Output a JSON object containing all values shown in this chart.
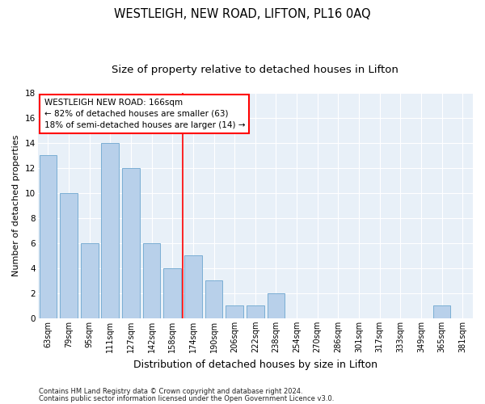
{
  "title": "WESTLEIGH, NEW ROAD, LIFTON, PL16 0AQ",
  "subtitle": "Size of property relative to detached houses in Lifton",
  "xlabel": "Distribution of detached houses by size in Lifton",
  "ylabel": "Number of detached properties",
  "categories": [
    "63sqm",
    "79sqm",
    "95sqm",
    "111sqm",
    "127sqm",
    "142sqm",
    "158sqm",
    "174sqm",
    "190sqm",
    "206sqm",
    "222sqm",
    "238sqm",
    "254sqm",
    "270sqm",
    "286sqm",
    "301sqm",
    "317sqm",
    "333sqm",
    "349sqm",
    "365sqm",
    "381sqm"
  ],
  "values": [
    13,
    10,
    6,
    14,
    12,
    6,
    4,
    5,
    3,
    1,
    1,
    2,
    0,
    0,
    0,
    0,
    0,
    0,
    0,
    1,
    0
  ],
  "bar_color": "#b8d0ea",
  "bar_edge_color": "#7aaed4",
  "red_line_x": 6.5,
  "annotation_line1": "WESTLEIGH NEW ROAD: 166sqm",
  "annotation_line2": "← 82% of detached houses are smaller (63)",
  "annotation_line3": "18% of semi-detached houses are larger (14) →",
  "ylim": [
    0,
    18
  ],
  "yticks": [
    0,
    2,
    4,
    6,
    8,
    10,
    12,
    14,
    16,
    18
  ],
  "footer1": "Contains HM Land Registry data © Crown copyright and database right 2024.",
  "footer2": "Contains public sector information licensed under the Open Government Licence v3.0.",
  "background_color": "#e8f0f8",
  "grid_color": "#ffffff",
  "title_fontsize": 10.5,
  "subtitle_fontsize": 9.5,
  "ylabel_fontsize": 8,
  "xlabel_fontsize": 9,
  "tick_fontsize": 7,
  "annotation_fontsize": 7.5,
  "footer_fontsize": 6
}
